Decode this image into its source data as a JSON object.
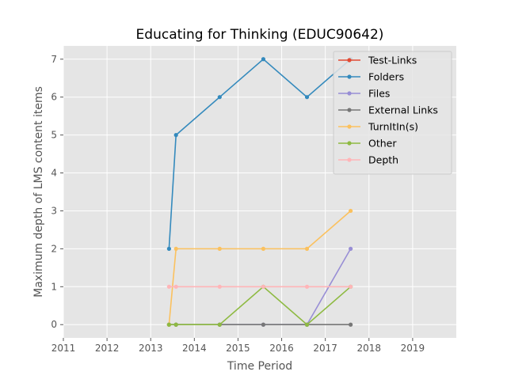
{
  "chart_data": {
    "type": "line",
    "title": "Educating for Thinking (EDUC90642)",
    "xlabel": "Time Period",
    "ylabel": "Maximum depth of LMS content items",
    "xlim": [
      2011.0,
      2020.0
    ],
    "ylim": [
      -0.35,
      7.35
    ],
    "x_ticks": [
      2011,
      2012,
      2013,
      2014,
      2015,
      2016,
      2017,
      2018,
      2019
    ],
    "y_ticks": [
      0,
      1,
      2,
      3,
      4,
      5,
      6,
      7
    ],
    "grid": true,
    "legend_position": "top-right",
    "x": [
      2013.42,
      2013.58,
      2014.58,
      2015.58,
      2016.58,
      2017.58
    ],
    "series": [
      {
        "name": "Test-Links",
        "color": "#e24a33",
        "values": [
          null,
          null,
          null,
          null,
          null,
          null
        ]
      },
      {
        "name": "Folders",
        "color": "#348abd",
        "values": [
          2,
          5,
          6,
          7,
          6,
          7
        ]
      },
      {
        "name": "Files",
        "color": "#988ed5",
        "values": [
          0,
          0,
          0,
          0,
          0,
          2
        ]
      },
      {
        "name": "External Links",
        "color": "#777777",
        "values": [
          0,
          0,
          0,
          0,
          0,
          0
        ]
      },
      {
        "name": "TurnItIn(s)",
        "color": "#fbc15e",
        "values": [
          0,
          2,
          2,
          2,
          2,
          3
        ]
      },
      {
        "name": "Other",
        "color": "#8eba42",
        "values": [
          0,
          0,
          0,
          1,
          0,
          1
        ]
      },
      {
        "name": "Depth",
        "color": "#ffb5b8",
        "values": [
          1,
          1,
          1,
          1,
          1,
          1
        ]
      }
    ]
  }
}
